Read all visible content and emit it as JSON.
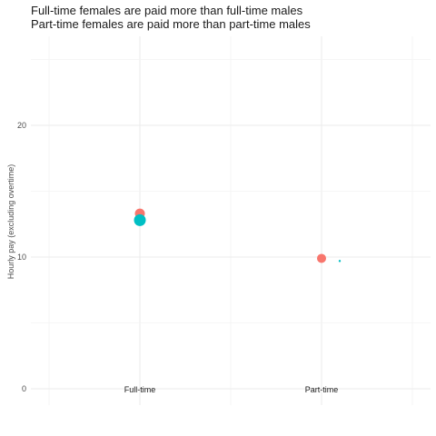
{
  "chart_data": {
    "type": "scatter",
    "title_lines": [
      "Full-time females are paid more than full-time males",
      "Part-time females are paid more than part-time males"
    ],
    "ylabel": "Hourly pay (excluding overtime)",
    "xlabel": "",
    "categories": [
      "Full-time",
      "Part-time"
    ],
    "ylim": [
      0,
      25
    ],
    "y_ticks": [
      0,
      10,
      20
    ],
    "grid": true,
    "series": [
      {
        "color": "#F8766D",
        "values": [
          13.3,
          9.9
        ],
        "sizes": [
          5.5,
          5
        ]
      },
      {
        "color": "#00BFC4",
        "values": [
          12.8,
          9.7
        ],
        "sizes": [
          6.5,
          1.2
        ]
      }
    ]
  }
}
